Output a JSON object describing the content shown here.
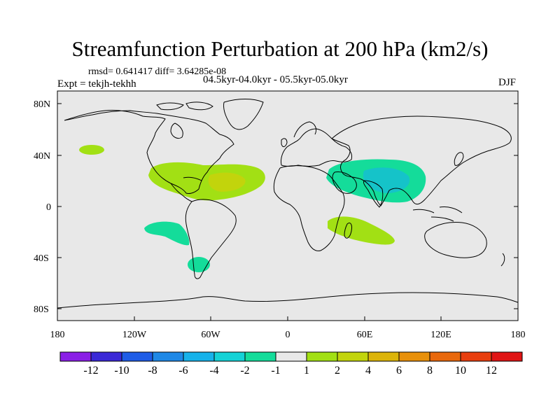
{
  "title": "Streamfunction Perturbation at 200 hPa (km2/s)",
  "stats": "rmsd= 0.641417 diff= 3.64285e-08",
  "experiment": "Expt = tekjh-tekhh",
  "period": "04.5kyr-04.0kyr - 05.5kyr-05.0kyr",
  "season": "DJF",
  "map": {
    "lat_ticks": [
      "80N",
      "40N",
      "0",
      "40S",
      "80S"
    ],
    "lon_ticks": [
      "180",
      "120W",
      "60W",
      "0",
      "60E",
      "120E",
      "180"
    ],
    "ocean_color": "#e8e8e8",
    "coast_color": "#000000"
  },
  "colorbar": {
    "labels": [
      "-12",
      "-10",
      "-8",
      "-6",
      "-4",
      "-2",
      "-1",
      "1",
      "2",
      "4",
      "6",
      "8",
      "10",
      "12"
    ],
    "colors": [
      "#8a1ee6",
      "#3a28d6",
      "#1e5ce6",
      "#1e88e6",
      "#16b2ea",
      "#14d2d6",
      "#14dc9a",
      "#e8e8e8",
      "#a2e014",
      "#c2d40c",
      "#dcb40a",
      "#e8900a",
      "#e8680c",
      "#e83e0e",
      "#e01414"
    ]
  },
  "anomalies": [
    {
      "region": "North Pacific",
      "level": "1 to 2"
    },
    {
      "region": "Gulf of Mexico / North Atlantic",
      "level": "2 to 4"
    },
    {
      "region": "Arabia / South Asia",
      "level": "-2 to -1"
    },
    {
      "region": "Indian Ocean / Madagascar",
      "level": "1 to 2"
    },
    {
      "region": "Southeast Pacific",
      "level": "-2 to -1"
    },
    {
      "region": "South Atlantic off Patagonia",
      "level": "-2 to -1"
    }
  ]
}
